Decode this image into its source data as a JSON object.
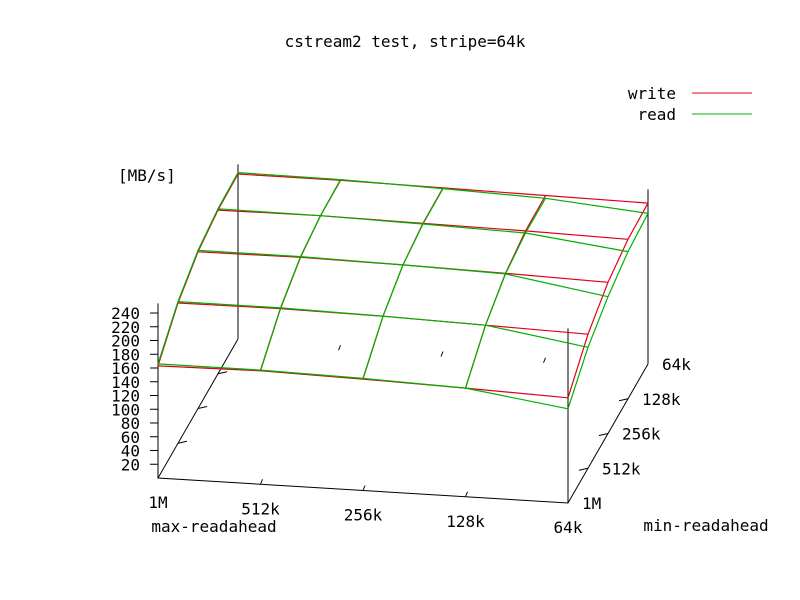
{
  "chart_data": {
    "type": "surface3d",
    "title": "cstream2 test, stripe=64k",
    "zlabel": "[MB/s]",
    "xlabel": "max-readahead",
    "ylabel": "min-readahead",
    "x_categories": [
      "1M",
      "512k",
      "256k",
      "128k",
      "64k"
    ],
    "y_categories": [
      "1M",
      "512k",
      "256k",
      "128k",
      "64k"
    ],
    "z_ticks": [
      "240",
      "220",
      "200",
      "180",
      "160",
      "140",
      "120",
      "100",
      "80",
      "60",
      "40",
      "20"
    ],
    "zlim": [
      0,
      240
    ],
    "series": [
      {
        "name": "write",
        "color": "#e0001b",
        "values": [
          [
            163,
            165,
            162,
            158,
            153
          ],
          [
            204,
            205,
            203,
            199,
            195
          ],
          [
            228,
            229,
            227,
            224,
            220
          ],
          [
            238,
            239,
            237,
            235,
            232
          ],
          [
            240,
            240,
            238,
            236,
            234
          ]
        ]
      },
      {
        "name": "read",
        "color": "#00b000",
        "values": [
          [
            166,
            166,
            163,
            158,
            137
          ],
          [
            206,
            206,
            203,
            199,
            176
          ],
          [
            230,
            230,
            227,
            223,
            199
          ],
          [
            240,
            239,
            236,
            232,
            214
          ],
          [
            242,
            241,
            237,
            232,
            219
          ]
        ]
      }
    ]
  }
}
